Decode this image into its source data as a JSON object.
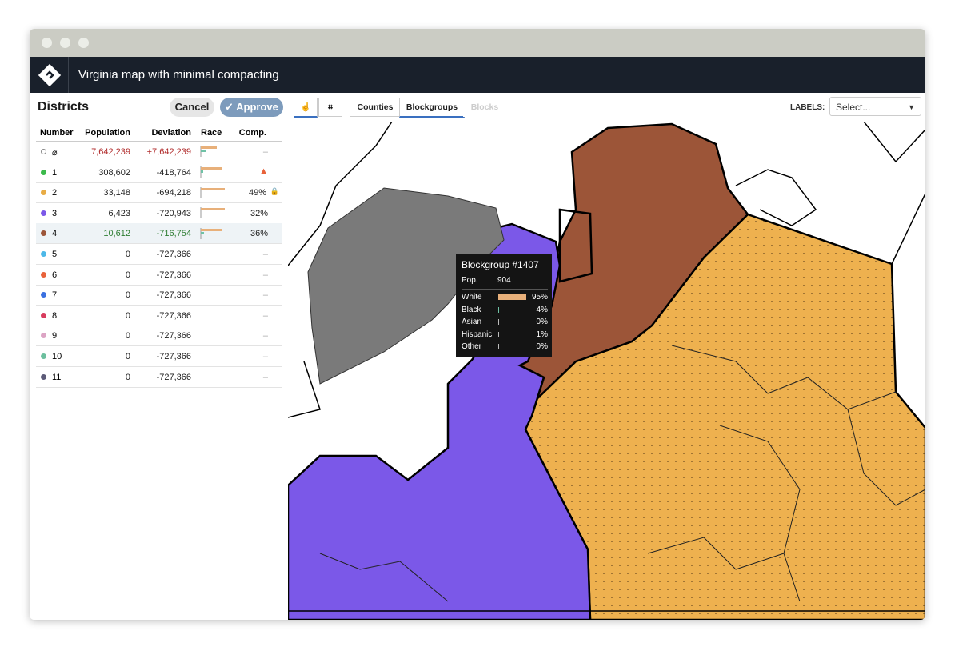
{
  "window": {
    "title": "Virginia map with minimal compacting"
  },
  "sidebar": {
    "title": "Districts",
    "cancel": "Cancel",
    "approve": "Approve",
    "columns": [
      "Number",
      "Population",
      "Deviation",
      "Race",
      "Comp."
    ],
    "rows": [
      {
        "number": "⌀",
        "population": "7,642,239",
        "deviation": "+7,642,239",
        "comp": "–",
        "status": "over"
      },
      {
        "number": "1",
        "population": "308,602",
        "deviation": "-418,764",
        "color": "#3cba4b",
        "warning": true
      },
      {
        "number": "2",
        "population": "33,148",
        "deviation": "-694,218",
        "comp": "49%",
        "color": "#e8ac45",
        "locked": true
      },
      {
        "number": "3",
        "population": "6,423",
        "deviation": "-720,943",
        "comp": "32%",
        "color": "#7b58e8"
      },
      {
        "number": "4",
        "population": "10,612",
        "deviation": "-716,754",
        "comp": "36%",
        "color": "#9c5538",
        "selected": true,
        "status": "ok"
      },
      {
        "number": "5",
        "population": "0",
        "deviation": "-727,366",
        "comp": "–",
        "color": "#4cb8e8"
      },
      {
        "number": "6",
        "population": "0",
        "deviation": "-727,366",
        "comp": "–",
        "color": "#e8623a"
      },
      {
        "number": "7",
        "population": "0",
        "deviation": "-727,366",
        "comp": "–",
        "color": "#3a70e0"
      },
      {
        "number": "8",
        "population": "0",
        "deviation": "-727,366",
        "comp": "–",
        "color": "#d83c5e"
      },
      {
        "number": "9",
        "population": "0",
        "deviation": "-727,366",
        "comp": "–",
        "color": "#dca4c4"
      },
      {
        "number": "10",
        "population": "0",
        "deviation": "-727,366",
        "comp": "–",
        "color": "#6cbf9e"
      },
      {
        "number": "11",
        "population": "0",
        "deviation": "-727,366",
        "comp": "–",
        "color": "#5c5a78"
      }
    ]
  },
  "toolbar": {
    "layers": [
      "Counties",
      "Blockgroups",
      "Blocks"
    ],
    "active_layer": 1,
    "disabled_layer": 2,
    "labels": "LABELS:",
    "select": "Select..."
  },
  "tooltip": {
    "title": "Blockgroup #1407",
    "pop_label": "Pop.",
    "pop": "904",
    "rows": [
      {
        "name": "White",
        "value": 95,
        "label": "95%",
        "color": "#e8b07a"
      },
      {
        "name": "Black",
        "value": 4,
        "label": "4%",
        "color": "#6fc2a6"
      },
      {
        "name": "Asian",
        "value": 0,
        "label": "0%",
        "color": "#bbbbbb"
      },
      {
        "name": "Hispanic",
        "value": 1,
        "label": "1%",
        "color": "#bbbbbb"
      },
      {
        "name": "Other",
        "value": 0,
        "label": "0%",
        "color": "#bbbbbb"
      }
    ]
  }
}
